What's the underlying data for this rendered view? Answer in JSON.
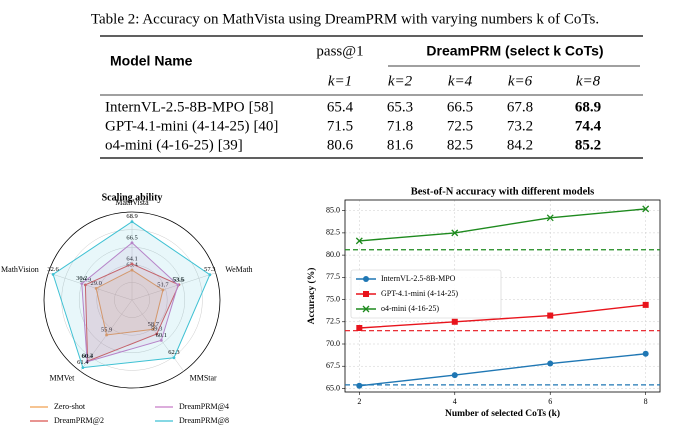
{
  "table": {
    "caption": "Table 2: Accuracy on MathVista using DreamPRM with varying numbers k of CoTs.",
    "header": {
      "model": "Model Name",
      "pass": "pass@1",
      "dream": "DreamPRM (select k CoTs)",
      "k": [
        "k=1",
        "k=2",
        "k=4",
        "k=6",
        "k=8"
      ]
    },
    "rows": [
      {
        "model": "InternVL-2.5-8B-MPO",
        "cite": "[58]",
        "values": [
          65.4,
          65.3,
          66.5,
          67.8,
          68.9
        ]
      },
      {
        "model": "GPT-4.1-mini (4-14-25)",
        "cite": "[40]",
        "values": [
          71.5,
          71.8,
          72.5,
          73.2,
          74.4
        ]
      },
      {
        "model": "o4-mini (4-16-25)",
        "cite": "[39]",
        "values": [
          80.6,
          81.6,
          82.5,
          84.2,
          85.2
        ]
      }
    ]
  },
  "chart_data": [
    {
      "type": "radar",
      "title": "Scaling ability",
      "axes": [
        "MathVista",
        "WeMath",
        "MMStar",
        "MMVet",
        "MathVision"
      ],
      "rlim": [
        [
          60,
          70
        ],
        [
          48,
          58
        ],
        [
          55,
          64
        ],
        [
          50,
          62
        ],
        [
          26,
          33
        ]
      ],
      "series": [
        {
          "name": "Zero-shot",
          "color": "#f0a050",
          "values": [
            63.4,
            51.7,
            58.7,
            55.9,
            29
          ],
          "value_labels": [
            "63.4",
            "51.7",
            "58.7",
            "55.9",
            "29.0"
          ]
        },
        {
          "name": "DreamPRM@2",
          "color": "#d9534f",
          "values": [
            64.1,
            53.6,
            59.3,
            60.3,
            29.9
          ]
        },
        {
          "name": "DreamPRM@4",
          "color": "#c77cc7",
          "values": [
            66.5,
            53.5,
            60.1,
            60.4,
            30.2
          ]
        },
        {
          "name": "DreamPRM@8",
          "color": "#3ec1d3",
          "values": [
            68.9,
            57.3,
            62.3,
            61.4,
            32.6
          ]
        }
      ],
      "legend": "lower center"
    },
    {
      "type": "line",
      "title": "Best-of-N accuracy with different models",
      "xlabel": "Number of selected CoTs (k)",
      "ylabel": "Accuracy (%)",
      "x": [
        2,
        4,
        6,
        8
      ],
      "xlim": [
        1.7,
        8.3
      ],
      "xticks": [
        2,
        4,
        6,
        8
      ],
      "ylim": [
        64.6,
        86.2
      ],
      "yticks": [
        {
          "value": 65,
          "label": "65.0"
        },
        {
          "value": 67.5,
          "label": "67.5"
        },
        {
          "value": 70,
          "label": "70.0"
        },
        {
          "value": 72.5,
          "label": "72.5"
        },
        {
          "value": 75,
          "label": "75.0"
        },
        {
          "value": 77.5,
          "label": "77.5"
        },
        {
          "value": 80,
          "label": "80.0"
        },
        {
          "value": 82.5,
          "label": "82.5"
        },
        {
          "value": 85,
          "label": "85.0"
        }
      ],
      "grid": true,
      "legend": "center left",
      "series": [
        {
          "name": "InternVL-2.5-8B-MPO",
          "color": "#1f77b4",
          "marker": "circle",
          "values": [
            65.3,
            66.5,
            67.8,
            68.9
          ],
          "baseline": 65.4
        },
        {
          "name": "GPT-4.1-mini (4-14-25)",
          "color": "#e8141c",
          "marker": "square",
          "values": [
            71.8,
            72.5,
            73.2,
            74.4
          ],
          "baseline": 71.5
        },
        {
          "name": "o4-mini (4-16-25)",
          "color": "#1e8a1e",
          "marker": "x",
          "values": [
            81.6,
            82.5,
            84.2,
            85.2
          ],
          "baseline": 80.6
        }
      ]
    }
  ]
}
